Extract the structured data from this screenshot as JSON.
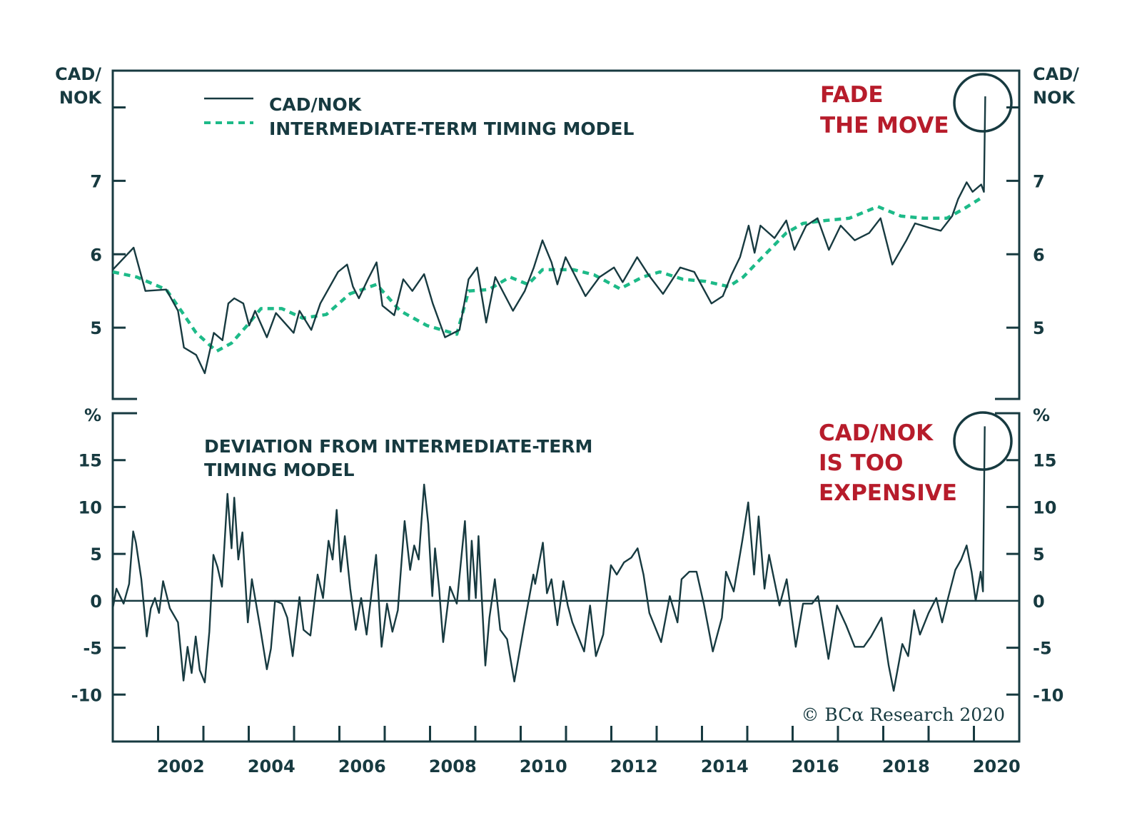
{
  "colors": {
    "dark": "#173a40",
    "green": "#1dba88",
    "red": "#b71c2b"
  },
  "chart_data": [
    {
      "type": "line",
      "panel": "top",
      "y_axis_label": [
        "CAD/",
        "NOK"
      ],
      "xlim": [
        2001,
        2021
      ],
      "ylim": [
        4.03,
        8.5
      ],
      "yticks": [
        5,
        6,
        7,
        8
      ],
      "ytick_labels": [
        "5",
        "6",
        "7",
        ""
      ],
      "legend": [
        "CAD/NOK",
        "INTERMEDIATE-TERM TIMING MODEL"
      ],
      "legend_placement": "top-left",
      "annotation": [
        "FADE",
        "THE MOVE"
      ],
      "series": [
        {
          "name": "CAD/NOK",
          "style": "solid",
          "x": [
            2001.0,
            2001.46,
            2001.72,
            2002.18,
            2002.44,
            2002.57,
            2002.84,
            2003.03,
            2003.23,
            2003.42,
            2003.55,
            2003.68,
            2003.88,
            2004.01,
            2004.14,
            2004.4,
            2004.6,
            2004.99,
            2005.12,
            2005.38,
            2005.58,
            2005.97,
            2006.17,
            2006.3,
            2006.43,
            2006.63,
            2006.82,
            2006.95,
            2007.21,
            2007.41,
            2007.61,
            2007.87,
            2008.06,
            2008.33,
            2008.65,
            2008.85,
            2009.04,
            2009.24,
            2009.44,
            2009.83,
            2010.09,
            2010.29,
            2010.48,
            2010.68,
            2010.81,
            2010.99,
            2011.43,
            2011.74,
            2012.06,
            2012.25,
            2012.57,
            2012.82,
            2013.14,
            2013.52,
            2013.83,
            2014.21,
            2014.46,
            2014.65,
            2014.84,
            2015.03,
            2015.16,
            2015.29,
            2015.6,
            2015.86,
            2016.04,
            2016.3,
            2016.55,
            2016.8,
            2017.06,
            2017.37,
            2017.69,
            2017.94,
            2018.2,
            2018.51,
            2018.7,
            2019.02,
            2019.27,
            2019.52,
            2019.65,
            2019.84,
            2019.97,
            2020.16,
            2020.22,
            2020.25
          ],
          "y": [
            5.79,
            6.09,
            5.5,
            5.52,
            5.23,
            4.73,
            4.63,
            4.38,
            4.93,
            4.83,
            5.33,
            5.4,
            5.33,
            5.03,
            5.23,
            4.87,
            5.2,
            4.93,
            5.23,
            4.97,
            5.33,
            5.76,
            5.86,
            5.56,
            5.4,
            5.66,
            5.89,
            5.3,
            5.17,
            5.66,
            5.5,
            5.73,
            5.33,
            4.87,
            4.97,
            5.66,
            5.82,
            5.07,
            5.69,
            5.23,
            5.5,
            5.82,
            6.19,
            5.89,
            5.59,
            5.96,
            5.43,
            5.69,
            5.82,
            5.62,
            5.96,
            5.72,
            5.46,
            5.82,
            5.76,
            5.33,
            5.43,
            5.72,
            5.96,
            6.39,
            6.02,
            6.39,
            6.22,
            6.46,
            6.06,
            6.39,
            6.49,
            6.06,
            6.39,
            6.19,
            6.29,
            6.49,
            5.86,
            6.19,
            6.42,
            6.36,
            6.32,
            6.52,
            6.75,
            6.98,
            6.85,
            6.95,
            6.85,
            8.15
          ]
        },
        {
          "name": "INTERMEDIATE-TERM TIMING MODEL",
          "style": "dashed",
          "x": [
            2001.0,
            2001.53,
            2002.18,
            2002.51,
            2002.84,
            2003.29,
            2003.62,
            2003.95,
            2004.27,
            2004.73,
            2005.19,
            2005.71,
            2006.23,
            2006.82,
            2007.34,
            2007.93,
            2008.59,
            2008.85,
            2009.3,
            2009.76,
            2010.16,
            2010.48,
            2011.17,
            2011.62,
            2012.19,
            2012.69,
            2013.07,
            2013.58,
            2014.08,
            2014.59,
            2014.91,
            2015.22,
            2015.54,
            2015.86,
            2016.23,
            2016.74,
            2017.25,
            2017.88,
            2018.39,
            2018.89,
            2019.4,
            2019.78,
            2020.22
          ],
          "y": [
            5.76,
            5.69,
            5.52,
            5.23,
            4.93,
            4.68,
            4.79,
            5.02,
            5.26,
            5.26,
            5.13,
            5.18,
            5.46,
            5.59,
            5.23,
            5.03,
            4.91,
            5.5,
            5.52,
            5.69,
            5.59,
            5.79,
            5.79,
            5.72,
            5.53,
            5.69,
            5.76,
            5.66,
            5.63,
            5.56,
            5.69,
            5.89,
            6.09,
            6.29,
            6.42,
            6.46,
            6.49,
            6.65,
            6.52,
            6.49,
            6.49,
            6.62,
            6.79
          ]
        }
      ]
    },
    {
      "type": "line",
      "panel": "bottom",
      "y_axis_label": "%",
      "title": [
        "DEVIATION FROM INTERMEDIATE-TERM",
        "TIMING MODEL"
      ],
      "annotation": [
        "CAD/NOK",
        "IS TOO",
        "EXPENSIVE"
      ],
      "xlim": [
        2001,
        2021
      ],
      "ylim": [
        -15,
        20
      ],
      "yticks": [
        -10,
        -5,
        0,
        5,
        10,
        15
      ],
      "ytick_labels": [
        "-10",
        "-5",
        "0",
        "5",
        "10",
        "15"
      ],
      "xticks": [
        2002,
        2003,
        2004,
        2005,
        2006,
        2007,
        2008,
        2009,
        2010,
        2011,
        2012,
        2013,
        2014,
        2015,
        2016,
        2017,
        2018,
        2019,
        2020
      ],
      "xtick_labels": [
        "2002",
        "2004",
        "2006",
        "2008",
        "2010",
        "2012",
        "2014",
        "2016",
        "2018",
        "2020"
      ],
      "zero_line": true,
      "series": [
        {
          "name": "Deviation",
          "style": "solid",
          "x": [
            2001.0,
            2001.08,
            2001.24,
            2001.36,
            2001.45,
            2001.51,
            2001.63,
            2001.75,
            2001.84,
            2001.93,
            2002.02,
            2002.11,
            2002.26,
            2002.44,
            2002.56,
            2002.65,
            2002.74,
            2002.83,
            2002.92,
            2003.03,
            2003.13,
            2003.22,
            2003.31,
            2003.41,
            2003.53,
            2003.62,
            2003.68,
            2003.77,
            2003.86,
            2003.98,
            2004.07,
            2004.25,
            2004.4,
            2004.49,
            2004.58,
            2004.73,
            2004.85,
            2004.97,
            2005.12,
            2005.21,
            2005.36,
            2005.52,
            2005.64,
            2005.76,
            2005.85,
            2005.94,
            2006.03,
            2006.12,
            2006.24,
            2006.36,
            2006.48,
            2006.6,
            2006.81,
            2006.93,
            2007.05,
            2007.17,
            2007.29,
            2007.44,
            2007.56,
            2007.65,
            2007.75,
            2007.87,
            2007.96,
            2008.05,
            2008.11,
            2008.2,
            2008.29,
            2008.44,
            2008.59,
            2008.77,
            2008.86,
            2008.92,
            2009.01,
            2009.07,
            2009.22,
            2009.31,
            2009.43,
            2009.55,
            2009.7,
            2009.86,
            2010.07,
            2010.28,
            2010.32,
            2010.49,
            2010.58,
            2010.68,
            2010.81,
            2010.94,
            2011.04,
            2011.14,
            2011.4,
            2011.53,
            2011.66,
            2011.82,
            2011.99,
            2012.12,
            2012.28,
            2012.44,
            2012.58,
            2012.71,
            2012.84,
            2013.1,
            2013.29,
            2013.46,
            2013.55,
            2013.72,
            2013.88,
            2014.04,
            2014.24,
            2014.44,
            2014.53,
            2014.7,
            2014.89,
            2015.02,
            2015.15,
            2015.25,
            2015.38,
            2015.48,
            2015.71,
            2015.87,
            2016.07,
            2016.23,
            2016.43,
            2016.56,
            2016.79,
            2016.98,
            2017.18,
            2017.37,
            2017.57,
            2017.73,
            2017.96,
            2018.12,
            2018.23,
            2018.42,
            2018.55,
            2018.68,
            2018.81,
            2019.0,
            2019.17,
            2019.3,
            2019.43,
            2019.59,
            2019.72,
            2019.84,
            2019.95,
            2020.04,
            2020.15,
            2020.2,
            2020.24
          ],
          "y": [
            -0.8,
            1.3,
            -0.3,
            1.8,
            7.4,
            6.2,
            2.3,
            -3.8,
            -0.8,
            0.3,
            -1.3,
            2.1,
            -0.8,
            -2.3,
            -8.5,
            -4.9,
            -7.7,
            -3.8,
            -7.4,
            -8.7,
            -3.3,
            4.9,
            3.6,
            1.5,
            11.4,
            5.6,
            11.0,
            4.4,
            7.3,
            -2.3,
            2.3,
            -2.8,
            -7.3,
            -5.1,
            0,
            -0.3,
            -1.8,
            -5.9,
            0.4,
            -3.1,
            -3.7,
            2.8,
            0.3,
            6.4,
            4.4,
            9.7,
            3.1,
            6.9,
            1.3,
            -3.1,
            0.3,
            -3.6,
            4.9,
            -4.9,
            -0.3,
            -3.3,
            -1.0,
            8.5,
            3.3,
            5.9,
            4.4,
            12.4,
            8.2,
            0.5,
            5.6,
            1.3,
            -4.4,
            1.5,
            -0.3,
            8.5,
            0,
            6.4,
            0.3,
            6.9,
            -6.9,
            -1.8,
            2.3,
            -3.1,
            -4.1,
            -8.6,
            -2.8,
            2.8,
            1.8,
            6.2,
            0.8,
            2.3,
            -2.6,
            2.1,
            -0.5,
            -2.3,
            -5.4,
            -0.5,
            -5.9,
            -3.6,
            3.8,
            2.8,
            4.1,
            4.6,
            5.6,
            2.8,
            -1.3,
            -4.4,
            0.5,
            -2.3,
            2.3,
            3.1,
            3.1,
            -0.3,
            -5.4,
            -1.8,
            3.1,
            1.0,
            6.4,
            10.5,
            2.8,
            9.0,
            1.3,
            4.9,
            -0.5,
            2.3,
            -4.9,
            -0.3,
            -0.3,
            0.5,
            -6.2,
            -0.5,
            -2.6,
            -4.9,
            -4.9,
            -3.8,
            -1.8,
            -6.9,
            -9.6,
            -4.6,
            -5.9,
            -1.0,
            -3.6,
            -1.3,
            0.3,
            -2.3,
            0.3,
            3.3,
            4.4,
            5.9,
            3.1,
            0,
            3.1,
            1.0,
            18.6
          ]
        }
      ]
    }
  ],
  "copyright": "© BCα Research 2020"
}
